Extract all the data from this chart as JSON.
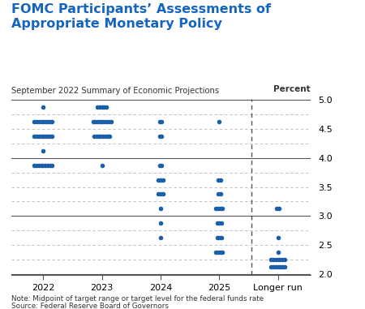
{
  "title": "FOMC Participants’ Assessments of\nAppropriate Monetary Policy",
  "subtitle": "September 2022 Summary of Economic Projections",
  "ylabel": "Percent",
  "note": "Note: Midpoint of target range or target level for the federal funds rate",
  "source": "Source: Federal Reserve Board of Governors",
  "title_color": "#1565c0",
  "dot_color": "#1a5fa8",
  "ylim": [
    2.0,
    5.0
  ],
  "yticks": [
    2.0,
    2.5,
    3.0,
    3.5,
    4.0,
    4.5,
    5.0
  ],
  "xlabels": [
    "2022",
    "2023",
    "2024",
    "2025",
    "Longer run"
  ],
  "dots": {
    "2022": {
      "4.875": 1,
      "4.625": 9,
      "4.375": 9,
      "4.125": 1,
      "3.875": 9
    },
    "2023": {
      "4.875": 5,
      "4.625": 9,
      "4.375": 8,
      "3.875": 1
    },
    "2024": {
      "4.625": 2,
      "4.375": 2,
      "3.875": 2,
      "3.625": 3,
      "3.375": 3,
      "3.125": 1,
      "2.875": 1,
      "2.625": 1
    },
    "2025": {
      "4.625": 1,
      "3.625": 2,
      "3.375": 2,
      "3.125": 4,
      "2.875": 3,
      "2.625": 3,
      "2.375": 4
    },
    "longer": {
      "3.125": 2,
      "2.625": 1,
      "2.375": 1,
      "2.125": 7,
      "2.250": 7
    }
  },
  "dot_size": 4.0,
  "jitter": 0.038,
  "vline_x": 3.55,
  "background_color": "#ffffff",
  "solid_line_values": [
    2.0,
    3.0,
    4.0,
    5.0
  ],
  "dashed_line_values": [
    2.25,
    2.5,
    2.75,
    3.25,
    3.5,
    3.75,
    4.25,
    4.5,
    4.75
  ]
}
